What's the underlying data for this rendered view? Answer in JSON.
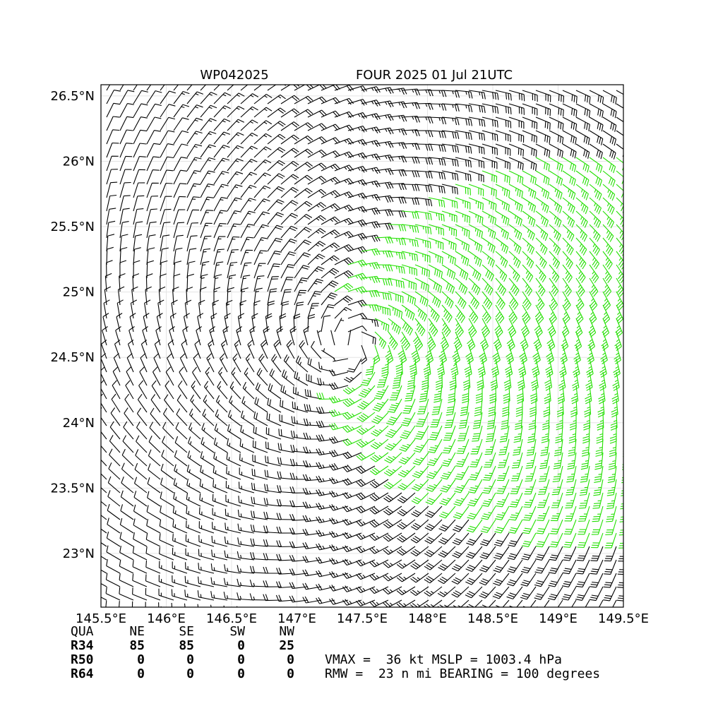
{
  "header": {
    "storm_id": "WP042025",
    "title": "FOUR 2025 01 Jul 21UTC"
  },
  "map": {
    "xlim": [
      145.5,
      149.5
    ],
    "ylim": [
      22.589,
      26.586
    ],
    "xticks": [
      {
        "value": 145.5,
        "label": "145.5°E"
      },
      {
        "value": 146,
        "label": "146°E"
      },
      {
        "value": 146.5,
        "label": "146.5°E"
      },
      {
        "value": 147,
        "label": "147°E"
      },
      {
        "value": 147.5,
        "label": "147.5°E"
      },
      {
        "value": 148,
        "label": "148°E"
      },
      {
        "value": 148.5,
        "label": "148.5°E"
      },
      {
        "value": 149,
        "label": "149°E"
      },
      {
        "value": 149.5,
        "label": "149.5°E"
      }
    ],
    "yticks": [
      {
        "value": 23,
        "label": "23°N"
      },
      {
        "value": 23.5,
        "label": "23.5°N"
      },
      {
        "value": 24,
        "label": "24°N"
      },
      {
        "value": 24.5,
        "label": "24.5°N"
      },
      {
        "value": 25,
        "label": "25°N"
      },
      {
        "value": 25.5,
        "label": "25.5°N"
      },
      {
        "value": 26,
        "label": "26°N"
      },
      {
        "value": 26.5,
        "label": "26.5°N"
      }
    ],
    "grid": true
  },
  "table": {
    "header": [
      "QUA",
      "NE",
      "SE",
      "SW",
      "NW"
    ],
    "rows": [
      [
        "R34",
        85,
        85,
        0,
        25
      ],
      [
        "R50",
        0,
        0,
        0,
        0
      ],
      [
        "R64",
        0,
        0,
        0,
        0
      ]
    ]
  },
  "info": [
    "VMAX =  36 kt MSLP = 1003.4 hPa",
    "RMW =  23 n mi BEARING = 100 degrees"
  ]
}
